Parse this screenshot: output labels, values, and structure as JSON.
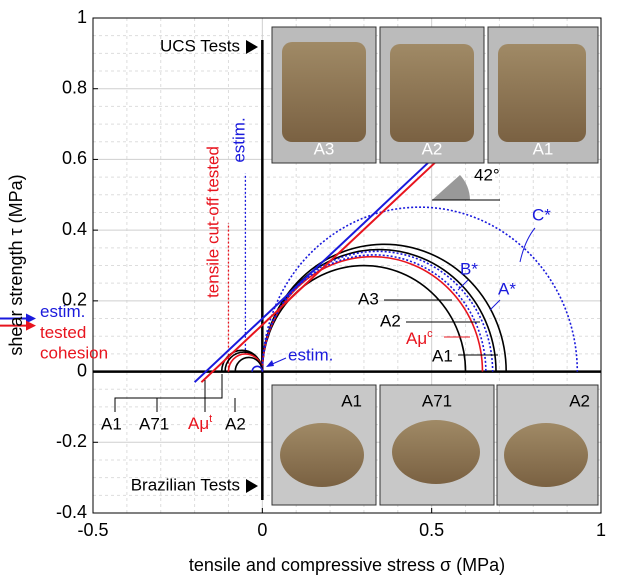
{
  "chart_data": {
    "type": "mohr",
    "xlabel": "tensile and compressive stress σ (MPa)",
    "ylabel": "shear strength τ (MPa)",
    "xlim": [
      -0.5,
      1
    ],
    "ylim": [
      -0.4,
      1
    ],
    "xticks": [
      -0.5,
      0,
      0.5,
      1
    ],
    "yticks": [
      -0.4,
      -0.2,
      0,
      0.2,
      0.4,
      0.6,
      0.8,
      1
    ],
    "grid": true,
    "minor_grid": true,
    "circles": [
      {
        "color": "#000000",
        "dashed": false,
        "sigma": [
          0,
          0.6
        ]
      },
      {
        "color": "#000000",
        "dashed": false,
        "sigma": [
          0,
          0.69
        ]
      },
      {
        "color": "#000000",
        "dashed": false,
        "sigma": [
          0,
          0.72
        ]
      },
      {
        "color": "#e8141e",
        "dashed": false,
        "sigma": [
          0,
          0.65
        ]
      },
      {
        "color": "#1a1adc",
        "dashed": true,
        "sigma": [
          0,
          0.66
        ]
      },
      {
        "color": "#1a1adc",
        "dashed": true,
        "sigma": [
          0,
          0.68
        ]
      },
      {
        "color": "#1a1adc",
        "dashed": true,
        "sigma": [
          0,
          0.93
        ]
      },
      {
        "color": "#000000",
        "dashed": false,
        "sigma": [
          -0.12,
          0
        ]
      },
      {
        "color": "#000000",
        "dashed": false,
        "sigma": [
          -0.11,
          0
        ]
      },
      {
        "color": "#e8141e",
        "dashed": false,
        "sigma": [
          -0.1,
          0
        ]
      },
      {
        "color": "#000000",
        "dashed": false,
        "sigma": [
          -0.08,
          0
        ]
      },
      {
        "color": "#1a1adc",
        "dashed": false,
        "sigma": [
          -0.03,
          0
        ]
      }
    ],
    "envelopes": [
      {
        "color": "#1a1adc",
        "x": [
          -0.2,
          0.5
        ],
        "y": [
          -0.03,
          0.6
        ]
      },
      {
        "color": "#e8141e",
        "x": [
          -0.18,
          0.52
        ],
        "y": [
          -0.03,
          0.6
        ]
      }
    ],
    "cutoffs": [
      {
        "color": "#e8141e",
        "x": -0.1,
        "y": [
          0,
          0.42
        ]
      },
      {
        "color": "#1a1adc",
        "x": -0.05,
        "y": [
          0.05,
          0.56
        ]
      }
    ],
    "cohesion": [
      {
        "color": "#1a1adc",
        "value": 0.15,
        "label": "estim."
      },
      {
        "color": "#e8141e",
        "value": 0.13,
        "label": "tested"
      }
    ],
    "annotations": {
      "ucs": "UCS Tests",
      "brazilian": "Brazilian Tests",
      "cutoff": "tensile cut-off tested",
      "cutoff_estim": "estim.",
      "angle": "42°",
      "c_star": "C*",
      "b_star": "B*",
      "a_star": "A*",
      "a3": "A3",
      "a2": "A2",
      "amu_c": {
        "base": "Aμ",
        "sup": "c"
      },
      "a1": "A1",
      "small_estim": "estim.",
      "cohesion": "cohesion",
      "bottom": [
        "A1",
        "A71",
        {
          "base": "Aμ",
          "sup": "t"
        },
        "A2"
      ]
    },
    "photos_top": [
      "A3",
      "A2",
      "A1"
    ],
    "photos_bottom": [
      "A1",
      "A71",
      "A2"
    ]
  }
}
